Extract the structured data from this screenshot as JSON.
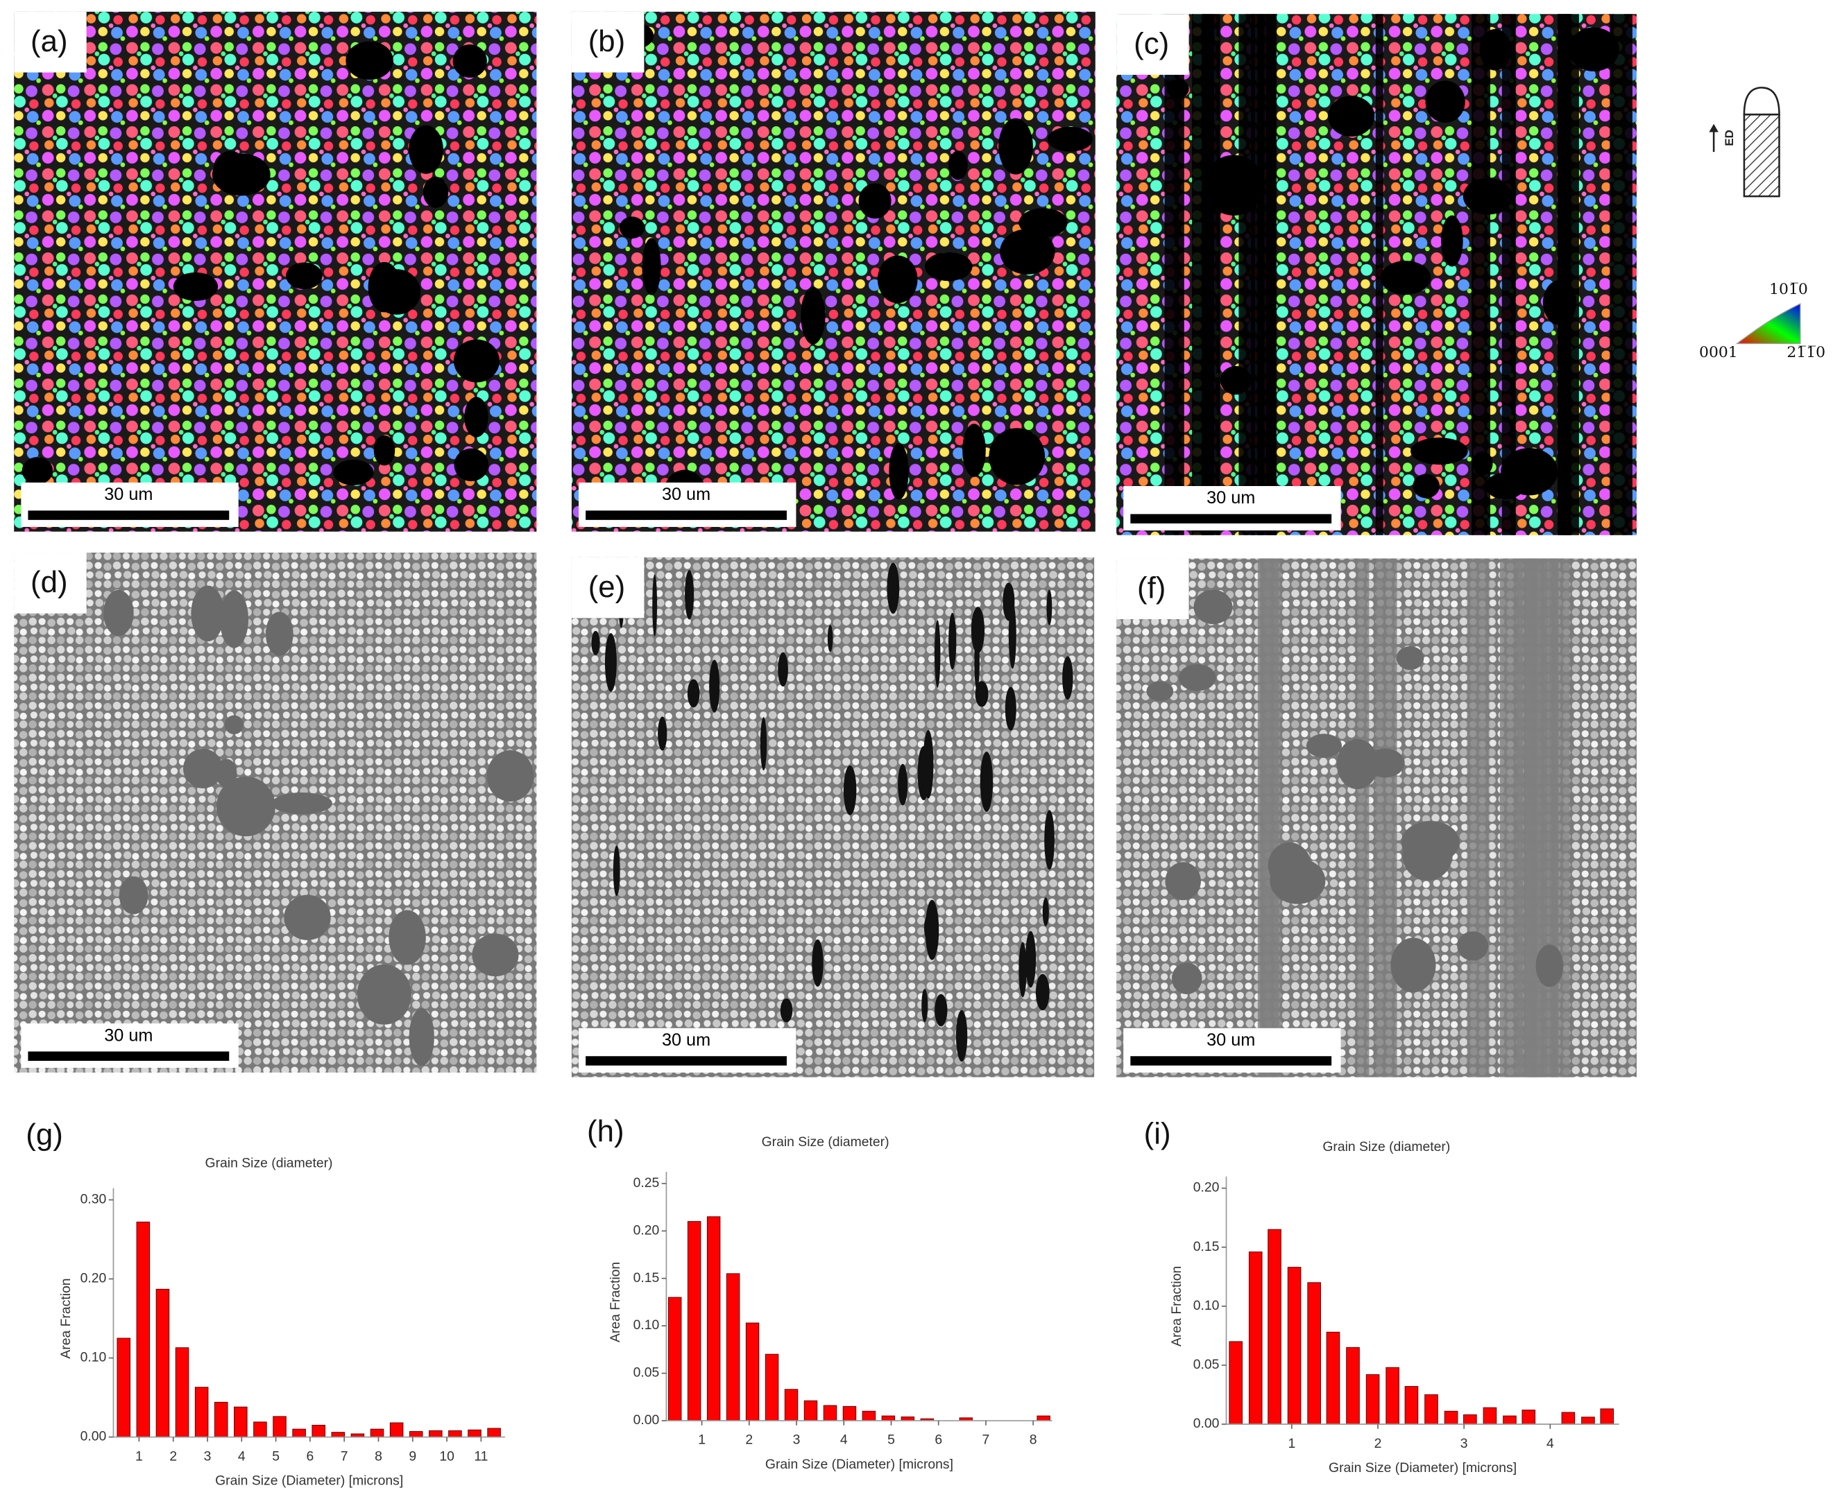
{
  "panels": [
    {
      "label": "(a)",
      "scale_bar": "30 um"
    },
    {
      "label": "(b)",
      "scale_bar": "30 um"
    },
    {
      "label": "(c)",
      "scale_bar": "30 um"
    },
    {
      "label": "(d)",
      "scale_bar": "30 um"
    },
    {
      "label": "(e)",
      "scale_bar": "30 um"
    },
    {
      "label": "(f)",
      "scale_bar": "30 um"
    }
  ],
  "legend": {
    "direction": "ED",
    "ipf": {
      "top": "101̅0",
      "left": "0001",
      "right": "21̅1̅0"
    }
  },
  "chart_data": [
    {
      "type": "bar",
      "panel_label": "(g)",
      "title": "Grain Size (diameter)",
      "x_label": "Grain Size (Diameter) [microns]",
      "y_label": "Area Fraction",
      "color": "#ff0000",
      "x": [
        0.55,
        1.12,
        1.69,
        2.26,
        2.83,
        3.4,
        3.97,
        4.54,
        5.11,
        5.68,
        6.25,
        6.82,
        7.39,
        7.96,
        8.53,
        9.1,
        9.67,
        10.24,
        10.81,
        11.38
      ],
      "values": [
        0.125,
        0.272,
        0.187,
        0.113,
        0.063,
        0.044,
        0.038,
        0.019,
        0.026,
        0.01,
        0.015,
        0.006,
        0.004,
        0.01,
        0.018,
        0.007,
        0.008,
        0.008,
        0.009,
        0.011
      ],
      "bin_width": 0.57,
      "xlim": [
        0.25,
        11.7
      ],
      "xticks": [
        1,
        2,
        3,
        4,
        5,
        6,
        7,
        8,
        9,
        10,
        11
      ],
      "ylim": [
        0,
        0.3
      ],
      "yticks": [
        {
          "value": 0,
          "label": "0.00"
        },
        {
          "value": 0.1,
          "label": "0.10"
        },
        {
          "value": 0.2,
          "label": "0.20"
        },
        {
          "value": 0.3,
          "label": "0.30"
        }
      ]
    },
    {
      "type": "bar",
      "panel_label": "(h)",
      "title": "Grain Size (diameter)",
      "x_label": "Grain Size (Diameter) [microns]",
      "y_label": "Area Fraction",
      "color": "#ff0000",
      "x": [
        0.43,
        0.84,
        1.25,
        1.66,
        2.07,
        2.48,
        2.89,
        3.3,
        3.71,
        4.12,
        4.53,
        4.94,
        5.35,
        5.76,
        6.17,
        6.58,
        6.99,
        7.4,
        7.81,
        8.22
      ],
      "values": [
        0.13,
        0.21,
        0.215,
        0.155,
        0.103,
        0.07,
        0.033,
        0.021,
        0.016,
        0.015,
        0.01,
        0.005,
        0.004,
        0.002,
        0,
        0.003,
        0,
        0,
        0,
        0.005
      ],
      "bin_width": 0.41,
      "xlim": [
        0.25,
        8.4
      ],
      "xticks": [
        1,
        2,
        3,
        4,
        5,
        6,
        7,
        8
      ],
      "ylim": [
        0,
        0.25
      ],
      "yticks": [
        {
          "value": 0,
          "label": "0.00"
        },
        {
          "value": 0.05,
          "label": "0.05"
        },
        {
          "value": 0.1,
          "label": "0.10"
        },
        {
          "value": 0.15,
          "label": "0.15"
        },
        {
          "value": 0.2,
          "label": "0.20"
        },
        {
          "value": 0.25,
          "label": "0.25"
        }
      ]
    },
    {
      "type": "bar",
      "panel_label": "(i)",
      "title": "Grain Size (diameter)",
      "x_label": "Grain Size (Diameter) [microns]",
      "y_label": "Area Fraction",
      "color": "#ff0000",
      "x": [
        0.35,
        0.58,
        0.8,
        1.03,
        1.26,
        1.48,
        1.71,
        1.94,
        2.17,
        2.39,
        2.62,
        2.85,
        3.07,
        3.3,
        3.53,
        3.75,
        3.98,
        4.21,
        4.44,
        4.66
      ],
      "values": [
        0.07,
        0.146,
        0.165,
        0.133,
        0.12,
        0.078,
        0.065,
        0.042,
        0.048,
        0.032,
        0.025,
        0.011,
        0.008,
        0.014,
        0.007,
        0.012,
        0,
        0.01,
        0.006,
        0.013
      ],
      "bin_width": 0.227,
      "xlim": [
        0.24,
        4.8
      ],
      "xticks": [
        1,
        2,
        3,
        4
      ],
      "ylim": [
        0,
        0.2
      ],
      "yticks": [
        {
          "value": 0,
          "label": "0.00"
        },
        {
          "value": 0.05,
          "label": "0.05"
        },
        {
          "value": 0.1,
          "label": "0.10"
        },
        {
          "value": 0.15,
          "label": "0.15"
        },
        {
          "value": 0.2,
          "label": "0.20"
        }
      ]
    }
  ]
}
